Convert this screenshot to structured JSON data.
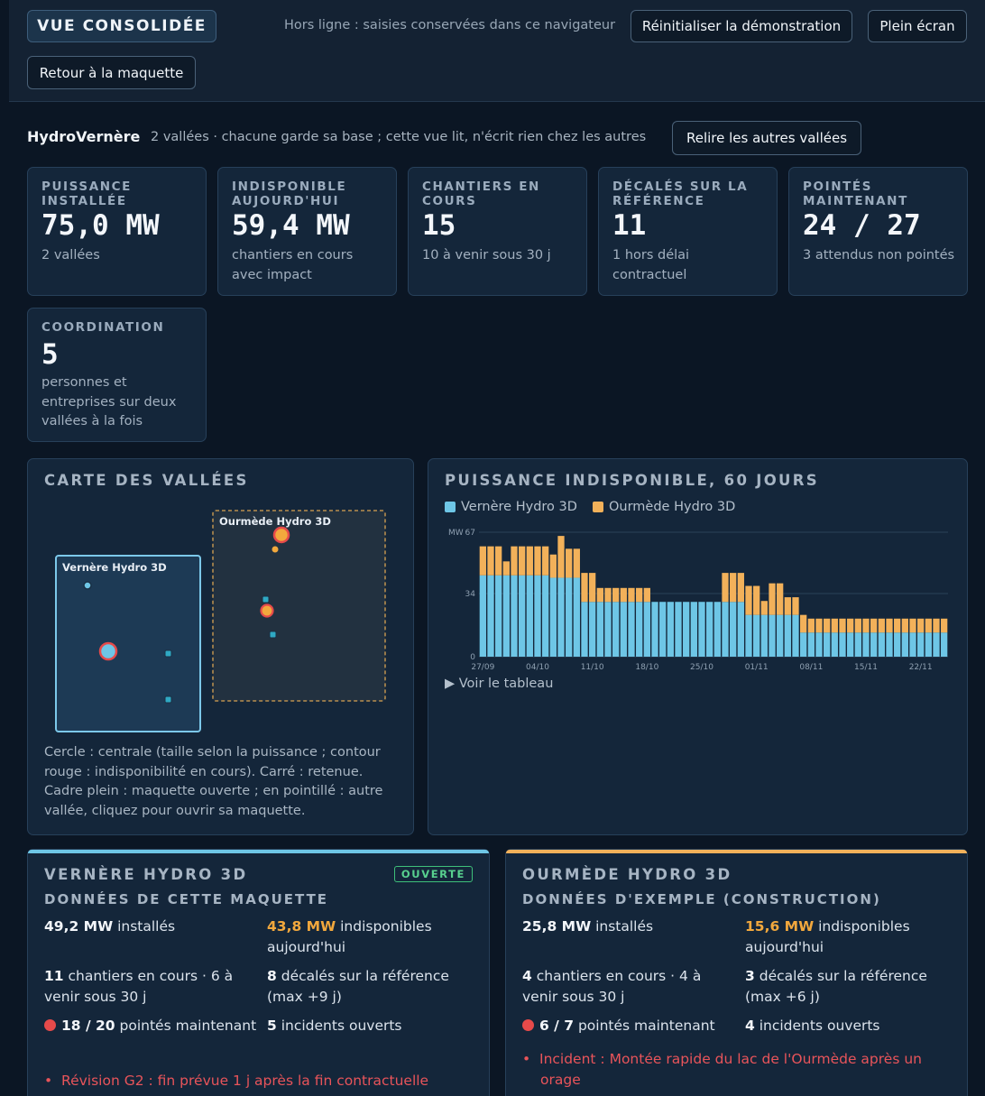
{
  "header": {
    "title": "VUE CONSOLIDÉE",
    "offline": "Hors ligne : saisies conservées dans ce navigateur",
    "reset_label": "Réinitialiser la démonstration",
    "fullscreen_label": "Plein écran",
    "back_label": "Retour à la maquette"
  },
  "brand": {
    "name": "HydroVernère",
    "tagline": "2 vallées · chacune garde sa base ; cette vue lit, n'écrit rien chez les autres",
    "reload_label": "Relire les autres vallées"
  },
  "kpis": [
    {
      "label": "PUISSANCE INSTALLÉE",
      "value": "75,0 MW",
      "sub": "2 vallées"
    },
    {
      "label": "INDISPONIBLE AUJOURD'HUI",
      "value": "59,4 MW",
      "sub": "chantiers en cours avec impact"
    },
    {
      "label": "CHANTIERS EN COURS",
      "value": "15",
      "sub": "10 à venir sous 30 j"
    },
    {
      "label": "DÉCALÉS SUR LA RÉFÉRENCE",
      "value": "11",
      "sub": "1 hors délai contractuel"
    },
    {
      "label": "POINTÉS MAINTENANT",
      "value": "24 / 27",
      "sub": "3 attendus non pointés"
    },
    {
      "label": "COORDINATION",
      "value": "5",
      "sub": "personnes et entreprises sur deux vallées à la fois"
    }
  ],
  "map": {
    "title": "CARTE DES VALLÉES",
    "valley_a": "Vernère Hydro 3D",
    "valley_b": "Ourmède Hydro 3D",
    "note": "Cercle : centrale (taille selon la puissance ; contour rouge : indisponibilité en cours). Carré : retenue. Cadre plein : maquette ouverte ; en pointillé : autre vallée, cliquez pour ouvrir sa maquette."
  },
  "chart_panel": {
    "title": "PUISSANCE INDISPONIBLE, 60 JOURS",
    "toggle": "▶ Voir le tableau"
  },
  "chart_data": {
    "type": "bar",
    "stacked": true,
    "title": "PUISSANCE INDISPONIBLE, 60 JOURS",
    "ylabel": "MW",
    "ylim": [
      0,
      67
    ],
    "yticks": [
      0,
      34,
      67
    ],
    "xtick_labels": [
      "27/09",
      "04/10",
      "11/10",
      "18/10",
      "25/10",
      "01/11",
      "08/11",
      "15/11",
      "22/11"
    ],
    "xtick_index": [
      0,
      7,
      14,
      21,
      28,
      35,
      42,
      49,
      56
    ],
    "legend_position": "top-left",
    "grid": true,
    "series": [
      {
        "name": "Vernère Hydro 3D",
        "color": "#6ec6e6",
        "values": [
          43.8,
          43.8,
          43.8,
          43.8,
          43.8,
          43.8,
          43.8,
          43.8,
          43.8,
          42.5,
          42.5,
          42.5,
          42.5,
          29.5,
          29.5,
          29.5,
          29.5,
          29.5,
          29.5,
          29.5,
          29.5,
          29.5,
          29.5,
          29.5,
          29.5,
          29.5,
          29.5,
          29.5,
          29.5,
          29.5,
          29.5,
          29.5,
          29.5,
          29.5,
          22.5,
          22.5,
          22.5,
          22.5,
          22.5,
          22.5,
          22.5,
          13,
          13,
          13,
          13,
          13,
          13,
          13,
          13,
          13,
          13,
          13,
          13,
          13,
          13,
          13,
          13,
          13,
          13,
          13
        ]
      },
      {
        "name": "Ourmède Hydro 3D",
        "color": "#f2b15a",
        "values": [
          15.6,
          15.6,
          15.6,
          7.5,
          15.6,
          15.6,
          15.6,
          15.6,
          15.6,
          12.5,
          22.5,
          15.6,
          15.6,
          15.6,
          15.6,
          7.5,
          7.5,
          7.5,
          7.5,
          7.5,
          7.5,
          7.5,
          0,
          0,
          0,
          0,
          0,
          0,
          0,
          0,
          0,
          15.6,
          15.6,
          15.6,
          15.6,
          15.6,
          7.5,
          17,
          17,
          9.5,
          9.5,
          9.5,
          7.5,
          7.5,
          7.5,
          7.5,
          7.5,
          7.5,
          7.5,
          7.5,
          7.5,
          7.5,
          7.5,
          7.5,
          7.5,
          7.5,
          7.5,
          7.5,
          7.5,
          7.5
        ]
      }
    ]
  },
  "valleys": [
    {
      "name": "VERNÈRE HYDRO 3D",
      "badge": "OUVERTE",
      "subtitle": "DONNÉES DE CETTE MAQUETTE",
      "accent": "#6ec6e6",
      "installed": "49,2 MW",
      "installed_txt": " installés",
      "unavail": "43,8 MW",
      "unavail_txt": " indisponibles aujourd'hui",
      "works": "11",
      "works_txt": " chantiers en cours · 6 à venir sous 30 j",
      "shifted": "8",
      "shifted_txt": " décalés sur la référence (max +9 j)",
      "checked": "18 / 20",
      "checked_txt": " pointés maintenant",
      "incidents": "5",
      "incidents_txt": " incidents ouverts",
      "alert": "Révision G2 : fin prévue 1 j après la fin contractuelle"
    },
    {
      "name": "OURMÈDE HYDRO 3D",
      "subtitle": "DONNÉES D'EXEMPLE (CONSTRUCTION)",
      "accent": "#f2b15a",
      "installed": "25,8 MW",
      "installed_txt": " installés",
      "unavail": "15,6 MW",
      "unavail_txt": " indisponibles aujourd'hui",
      "works": "4",
      "works_txt": " chantiers en cours · 4 à venir sous 30 j",
      "shifted": "3",
      "shifted_txt": " décalés sur la référence (max +6 j)",
      "checked": "6 / 7",
      "checked_txt": " pointés maintenant",
      "incidents": "4",
      "incidents_txt": " incidents ouverts",
      "alert": "Incident : Montée rapide du lac de l'Ourmède après un orage"
    }
  ]
}
